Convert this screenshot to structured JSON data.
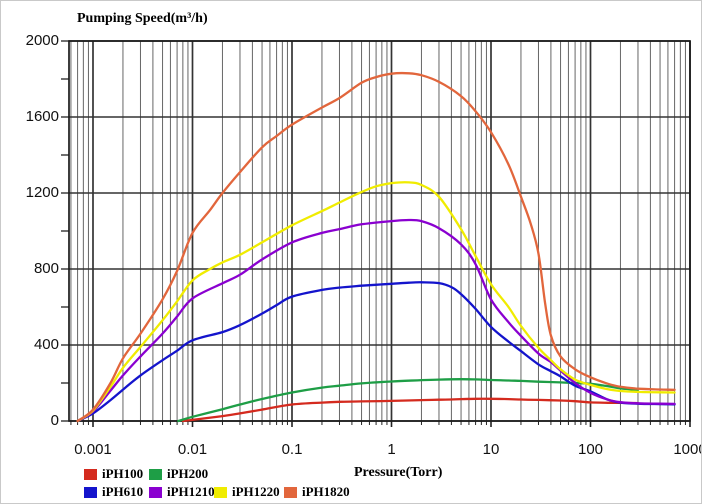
{
  "chart_data": {
    "type": "line",
    "title": "Pumping Speed(m³/h)",
    "xlabel": "Pressure(Torr)",
    "ylabel": "Pumping Speed(m³/h)",
    "x_scale": "log",
    "xlim": [
      0.00057,
      1000
    ],
    "ylim": [
      0,
      2000
    ],
    "x_ticks": [
      "0.001",
      "0.01",
      "0.1",
      "1",
      "10",
      "100",
      "1000"
    ],
    "y_ticks": [
      "0",
      "400",
      "800",
      "1200",
      "1600",
      "2000"
    ],
    "y_major_step": 400,
    "y_minor_step": 200,
    "grid": {
      "minor_color": "#666666",
      "major_color": "#333333",
      "border_color": "#1a1a1a"
    },
    "legend_position": "bottom-left",
    "series": [
      {
        "name": "iPH100",
        "color": "#d42a1e",
        "points": [
          [
            0.008,
            0
          ],
          [
            0.01,
            6
          ],
          [
            0.02,
            26
          ],
          [
            0.03,
            40
          ],
          [
            0.05,
            60
          ],
          [
            0.1,
            87
          ],
          [
            0.2,
            97
          ],
          [
            0.3,
            101
          ],
          [
            0.5,
            103
          ],
          [
            1,
            106
          ],
          [
            2,
            110
          ],
          [
            3,
            112
          ],
          [
            5,
            115
          ],
          [
            7,
            117
          ],
          [
            10,
            117
          ],
          [
            15,
            115
          ],
          [
            20,
            113
          ],
          [
            30,
            111
          ],
          [
            50,
            108
          ],
          [
            70,
            104
          ],
          [
            100,
            98
          ],
          [
            150,
            96
          ],
          [
            200,
            95
          ],
          [
            300,
            94
          ]
        ]
      },
      {
        "name": "iPH200",
        "color": "#1e9e46",
        "points": [
          [
            0.0072,
            0
          ],
          [
            0.01,
            22
          ],
          [
            0.02,
            62
          ],
          [
            0.03,
            87
          ],
          [
            0.05,
            116
          ],
          [
            0.1,
            150
          ],
          [
            0.2,
            176
          ],
          [
            0.3,
            186
          ],
          [
            0.5,
            198
          ],
          [
            1,
            208
          ],
          [
            2,
            215
          ],
          [
            3,
            218
          ],
          [
            5,
            220
          ],
          [
            7,
            219
          ],
          [
            10,
            216
          ],
          [
            15,
            213
          ],
          [
            20,
            211
          ],
          [
            30,
            207
          ],
          [
            50,
            203
          ],
          [
            70,
            200
          ],
          [
            100,
            196
          ],
          [
            150,
            183
          ],
          [
            200,
            172
          ],
          [
            300,
            164
          ]
        ]
      },
      {
        "name": "iPH610",
        "color": "#1414cc",
        "points": [
          [
            0.0007,
            0
          ],
          [
            0.001,
            40
          ],
          [
            0.0015,
            110
          ],
          [
            0.002,
            165
          ],
          [
            0.003,
            240
          ],
          [
            0.005,
            320
          ],
          [
            0.007,
            370
          ],
          [
            0.01,
            425
          ],
          [
            0.02,
            468
          ],
          [
            0.03,
            505
          ],
          [
            0.05,
            565
          ],
          [
            0.07,
            610
          ],
          [
            0.1,
            655
          ],
          [
            0.2,
            690
          ],
          [
            0.3,
            702
          ],
          [
            0.5,
            712
          ],
          [
            1,
            722
          ],
          [
            1.5,
            728
          ],
          [
            2,
            730
          ],
          [
            3,
            726
          ],
          [
            4,
            705
          ],
          [
            5,
            668
          ],
          [
            7,
            590
          ],
          [
            10,
            495
          ],
          [
            15,
            418
          ],
          [
            20,
            368
          ],
          [
            30,
            298
          ],
          [
            40,
            262
          ],
          [
            50,
            235
          ],
          [
            70,
            186
          ],
          [
            100,
            156
          ],
          [
            150,
            112
          ],
          [
            200,
            97
          ],
          [
            300,
            91
          ],
          [
            500,
            89
          ],
          [
            700,
            88
          ]
        ]
      },
      {
        "name": "iPH1210",
        "color": "#8a00d0",
        "points": [
          [
            0.0007,
            0
          ],
          [
            0.001,
            50
          ],
          [
            0.0015,
            160
          ],
          [
            0.002,
            240
          ],
          [
            0.003,
            340
          ],
          [
            0.005,
            460
          ],
          [
            0.007,
            550
          ],
          [
            0.01,
            645
          ],
          [
            0.02,
            725
          ],
          [
            0.03,
            770
          ],
          [
            0.05,
            850
          ],
          [
            0.1,
            940
          ],
          [
            0.2,
            990
          ],
          [
            0.3,
            1010
          ],
          [
            0.5,
            1035
          ],
          [
            1,
            1052
          ],
          [
            1.5,
            1058
          ],
          [
            2,
            1052
          ],
          [
            3,
            1015
          ],
          [
            5,
            930
          ],
          [
            7,
            825
          ],
          [
            10,
            640
          ],
          [
            15,
            520
          ],
          [
            20,
            448
          ],
          [
            30,
            355
          ],
          [
            40,
            310
          ],
          [
            50,
            265
          ],
          [
            70,
            200
          ],
          [
            100,
            148
          ],
          [
            150,
            112
          ],
          [
            200,
            99
          ],
          [
            300,
            93
          ],
          [
            500,
            91
          ],
          [
            700,
            90
          ]
        ]
      },
      {
        "name": "iPH1220",
        "color": "#f0ec00",
        "points": [
          [
            0.0007,
            0
          ],
          [
            0.001,
            55
          ],
          [
            0.0015,
            180
          ],
          [
            0.002,
            280
          ],
          [
            0.003,
            390
          ],
          [
            0.005,
            530
          ],
          [
            0.007,
            630
          ],
          [
            0.01,
            740
          ],
          [
            0.015,
            800
          ],
          [
            0.02,
            835
          ],
          [
            0.03,
            875
          ],
          [
            0.05,
            940
          ],
          [
            0.1,
            1030
          ],
          [
            0.2,
            1105
          ],
          [
            0.3,
            1150
          ],
          [
            0.5,
            1205
          ],
          [
            0.7,
            1235
          ],
          [
            1,
            1252
          ],
          [
            1.5,
            1256
          ],
          [
            2,
            1242
          ],
          [
            3,
            1180
          ],
          [
            5,
            1010
          ],
          [
            7,
            868
          ],
          [
            10,
            720
          ],
          [
            15,
            600
          ],
          [
            20,
            500
          ],
          [
            30,
            385
          ],
          [
            40,
            320
          ],
          [
            50,
            272
          ],
          [
            70,
            218
          ],
          [
            100,
            190
          ],
          [
            150,
            167
          ],
          [
            200,
            158
          ],
          [
            300,
            153
          ],
          [
            500,
            151
          ],
          [
            700,
            150
          ]
        ]
      },
      {
        "name": "iPH1820",
        "color": "#e2663c",
        "points": [
          [
            0.0007,
            0
          ],
          [
            0.001,
            60
          ],
          [
            0.0015,
            200
          ],
          [
            0.002,
            330
          ],
          [
            0.003,
            460
          ],
          [
            0.005,
            640
          ],
          [
            0.007,
            790
          ],
          [
            0.01,
            990
          ],
          [
            0.015,
            1110
          ],
          [
            0.02,
            1200
          ],
          [
            0.03,
            1310
          ],
          [
            0.05,
            1440
          ],
          [
            0.07,
            1500
          ],
          [
            0.1,
            1560
          ],
          [
            0.2,
            1650
          ],
          [
            0.3,
            1700
          ],
          [
            0.5,
            1780
          ],
          [
            0.7,
            1810
          ],
          [
            1,
            1828
          ],
          [
            1.5,
            1830
          ],
          [
            2,
            1820
          ],
          [
            3,
            1785
          ],
          [
            5,
            1710
          ],
          [
            7,
            1630
          ],
          [
            10,
            1520
          ],
          [
            15,
            1350
          ],
          [
            20,
            1180
          ],
          [
            25,
            1040
          ],
          [
            30,
            880
          ],
          [
            35,
            620
          ],
          [
            40,
            450
          ],
          [
            50,
            340
          ],
          [
            70,
            272
          ],
          [
            100,
            230
          ],
          [
            150,
            196
          ],
          [
            200,
            180
          ],
          [
            300,
            170
          ],
          [
            500,
            166
          ],
          [
            700,
            164
          ]
        ]
      }
    ]
  }
}
